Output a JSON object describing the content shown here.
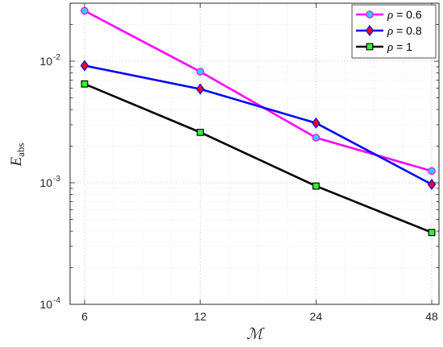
{
  "chart_data": {
    "type": "line",
    "xlabel": "ℳ",
    "ylabel": {
      "main": "E",
      "sub": "abs"
    },
    "x": [
      6,
      12,
      24,
      48
    ],
    "x_ticks": [
      "6",
      "12",
      "24",
      "48"
    ],
    "x_scale": "log2",
    "y_scale": "log",
    "ylim": [
      0.0001,
      0.03
    ],
    "y_ticks": [
      {
        "value": 0.0001,
        "base": "10",
        "exp": "-4"
      },
      {
        "value": 0.001,
        "base": "10",
        "exp": "-3"
      },
      {
        "value": 0.01,
        "base": "10",
        "exp": "-2"
      }
    ],
    "grid": true,
    "minor_grid": true,
    "legend_position": "top-right",
    "series": [
      {
        "name": "ρ = 0.6",
        "symbol": "ρ",
        "rest": " = 0.6",
        "values": [
          0.026,
          0.0082,
          0.00235,
          0.00125
        ],
        "color": "#ff00ff",
        "marker": "circle",
        "marker_fill": "#33ccff"
      },
      {
        "name": "ρ = 0.8",
        "symbol": "ρ",
        "rest": " = 0.8",
        "values": [
          0.0092,
          0.0059,
          0.0031,
          0.00097
        ],
        "color": "#0000ff",
        "marker": "diamond",
        "marker_fill": "#ff0000"
      },
      {
        "name": "ρ = 1",
        "symbol": "ρ",
        "rest": " = 1",
        "values": [
          0.0065,
          0.0026,
          0.00094,
          0.00039
        ],
        "color": "#000000",
        "marker": "square",
        "marker_fill": "#33ff33"
      }
    ]
  }
}
